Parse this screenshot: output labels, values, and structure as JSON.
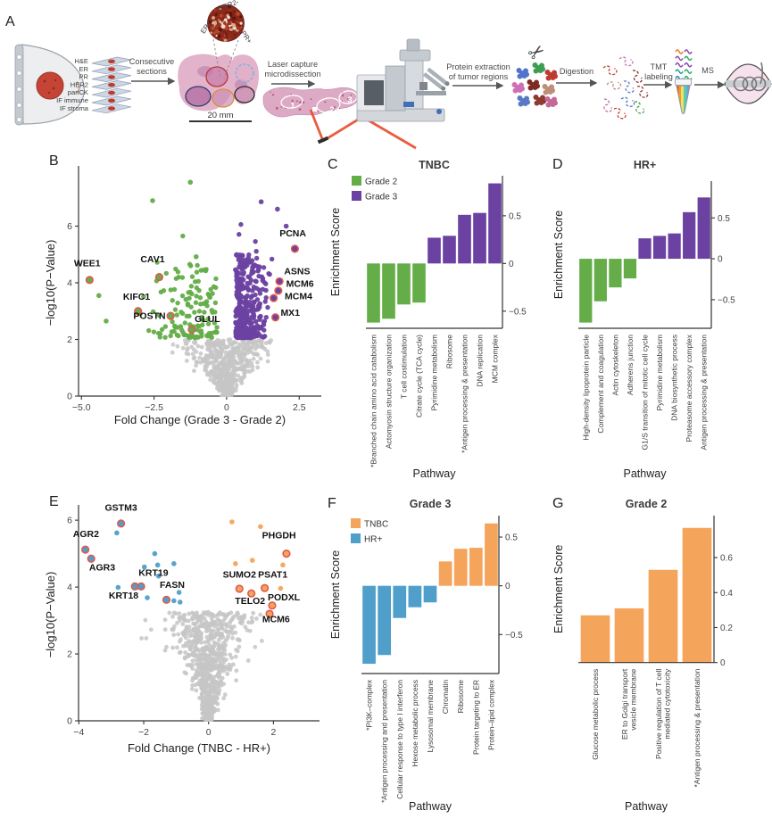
{
  "panel_letters": {
    "a": "A",
    "b": "B",
    "c": "C",
    "d": "D",
    "e": "E",
    "f": "F",
    "g": "G"
  },
  "colors": {
    "grade2_green": "#64ad48",
    "grade3_purple": "#6b41a1",
    "tnbc_orange": "#f5a45c",
    "hrplus_blue": "#4f9fca",
    "nonsignificant_grey": "#c6c6c6",
    "highlight_ring": "#dd5b50",
    "laser_red": "#e84b2c",
    "tumor_red": "#c44536"
  },
  "panel_a": {
    "slides": [
      "H&E",
      "ER",
      "PR",
      "HER2",
      "panCK",
      "IF immune",
      "IF stroma"
    ],
    "steps": {
      "consecutive_sections": [
        "Consecutive",
        "sections"
      ],
      "laser_capture": [
        "Laser capture",
        "microdissection"
      ],
      "protein_extraction": [
        "Protein extraction",
        "of tumor regions"
      ],
      "digestion": "Digestion",
      "tmt_labeling": [
        "TMT",
        "labeling"
      ],
      "ms": "MS"
    },
    "inset": {
      "her2": "HER2-",
      "er": "ER+",
      "pr": "PR+"
    },
    "scale_bar": "20 mm",
    "regions": [
      "1",
      "2",
      "3"
    ]
  },
  "chart_data": [
    {
      "panel": "B",
      "type": "scatter",
      "subtype": "volcano",
      "xlabel": "Fold Change (Grade 3 - Grade 2)",
      "ylabel": "−log10(P−Value)",
      "xlim": [
        -5.1,
        3.26
      ],
      "ylim": [
        0,
        8.0
      ],
      "xticks": [
        -5.0,
        -2.5,
        0,
        2.5
      ],
      "xtick_labels": [
        "−5.0",
        "−2.5",
        "0",
        "2.5"
      ],
      "yticks": [
        0,
        2,
        4,
        6
      ],
      "ytick_labels": [
        "0",
        "2",
        "4",
        "6"
      ],
      "significance_threshold_y": 2,
      "colors": {
        "up": "#6b41a1",
        "down": "#64ad48",
        "ns": "#c6c6c6",
        "ring": "#dd5b50"
      },
      "highlighted_genes": [
        {
          "name": "WEE1",
          "x": -4.72,
          "y": 4.1,
          "group": "down",
          "label_x": -4.8,
          "label_y": 4.58,
          "anchor": "middle"
        },
        {
          "name": "CAV1",
          "x": -2.32,
          "y": 4.2,
          "group": "down",
          "label_x": -2.55,
          "label_y": 4.72,
          "anchor": "middle"
        },
        {
          "name": "KIFC1",
          "x": -3.05,
          "y": 3.0,
          "group": "down",
          "label_x": -3.1,
          "label_y": 3.4,
          "anchor": "middle"
        },
        {
          "name": "POSTN",
          "x": -1.93,
          "y": 2.83,
          "group": "down",
          "label_x": -2.1,
          "label_y": 2.72,
          "anchor": "end"
        },
        {
          "name": "GLUL",
          "x": -1.2,
          "y": 2.35,
          "group": "down",
          "label_x": -1.1,
          "label_y": 2.62,
          "anchor": "start"
        },
        {
          "name": "PCNA",
          "x": 2.35,
          "y": 5.2,
          "group": "up",
          "label_x": 2.28,
          "label_y": 5.64,
          "anchor": "middle"
        },
        {
          "name": "ASNS",
          "x": 1.82,
          "y": 4.05,
          "group": "up",
          "label_x": 1.98,
          "label_y": 4.3,
          "anchor": "start"
        },
        {
          "name": "MCM6",
          "x": 1.78,
          "y": 3.72,
          "group": "up",
          "label_x": 2.05,
          "label_y": 3.86,
          "anchor": "start"
        },
        {
          "name": "MCM4",
          "x": 1.62,
          "y": 3.46,
          "group": "up",
          "label_x": 2.0,
          "label_y": 3.42,
          "anchor": "start"
        },
        {
          "name": "MX1",
          "x": 1.68,
          "y": 2.78,
          "group": "up",
          "label_x": 1.86,
          "label_y": 2.84,
          "anchor": "start"
        }
      ],
      "extra_points": [
        {
          "x": -1.25,
          "y": 7.55,
          "group": "down"
        },
        {
          "x": -2.55,
          "y": 6.9,
          "group": "down"
        },
        {
          "x": -1.05,
          "y": 4.92,
          "group": "down"
        },
        {
          "x": -4.4,
          "y": 3.55,
          "group": "down"
        },
        {
          "x": -4.15,
          "y": 2.65,
          "group": "down"
        },
        {
          "x": 1.19,
          "y": 6.86,
          "group": "up"
        },
        {
          "x": 1.75,
          "y": 6.6,
          "group": "up"
        },
        {
          "x": 2.05,
          "y": 6.0,
          "group": "up"
        }
      ],
      "cloud": {
        "seed": 11,
        "ns_n": 520,
        "down_n": 135,
        "up_n": 340
      }
    },
    {
      "panel": "C",
      "type": "bar",
      "title": "TNBC",
      "ylabel": "Enrichment Score",
      "xlabel": "Pathway",
      "legend": [
        {
          "label": "Grade 2",
          "color": "#64ad48"
        },
        {
          "label": "Grade 3",
          "color": "#6b41a1"
        }
      ],
      "ylim": [
        -0.68,
        0.92
      ],
      "yticks": [
        -0.5,
        0,
        0.5
      ],
      "ytick_labels": [
        "−0.5",
        "0",
        "0.5"
      ],
      "categories": [
        "*Branched chain amino acid catabolism",
        "Actomyosin structure organization",
        "T cell costimulation",
        "Citrate cycle (TCA cycle)",
        "Pyrimidine metabolism",
        "Ribosome",
        "*Antigen processing & presentation",
        "DNA replication",
        "MCM complex"
      ],
      "values": [
        -0.62,
        -0.58,
        -0.43,
        -0.41,
        0.27,
        0.29,
        0.51,
        0.53,
        0.84
      ],
      "negative_color": "#64ad48",
      "positive_color": "#6b41a1"
    },
    {
      "panel": "D",
      "type": "bar",
      "title": "HR+",
      "ylabel": "Enrichment Score",
      "xlabel": "Pathway",
      "legend": [],
      "ylim": [
        -0.85,
        0.95
      ],
      "yticks": [
        -0.5,
        0,
        0.5
      ],
      "ytick_labels": [
        "−0.5",
        "0",
        "0.5"
      ],
      "categories": [
        "High-density lipoprotein particle",
        "Complement and coagulation",
        "Actin cytoskeleton",
        "Adherens junction",
        "G1/S transition of mitotic cell cycle",
        "Pyrimidine metabolism",
        "DNA biosynthetic process",
        "Proteasome accessory complex",
        "Antigen processing & presentation"
      ],
      "values": [
        -0.78,
        -0.52,
        -0.35,
        -0.24,
        0.25,
        0.28,
        0.31,
        0.57,
        0.75
      ],
      "negative_color": "#64ad48",
      "positive_color": "#6b41a1"
    },
    {
      "panel": "E",
      "type": "scatter",
      "subtype": "volcano",
      "xlabel": "Fold Change (TNBC - HR+)",
      "ylabel": "−log10(P−Value)",
      "xlim": [
        -4.01,
        3.42
      ],
      "ylim": [
        0,
        6.35
      ],
      "xticks": [
        -4,
        -2,
        0,
        2
      ],
      "xtick_labels": [
        "−4",
        "−2",
        "0",
        "2"
      ],
      "yticks": [
        0,
        2,
        4,
        6
      ],
      "ytick_labels": [
        "0",
        "2",
        "4",
        "6"
      ],
      "significance_threshold_y": 3.4,
      "colors": {
        "up": "#f5a45c",
        "down": "#4f9fca",
        "ns": "#c6c6c6",
        "ring": "#dd5b50"
      },
      "highlighted_genes": [
        {
          "name": "GSTM3",
          "x": -2.7,
          "y": 5.9,
          "group": "down",
          "label_x": -2.7,
          "label_y": 6.28,
          "anchor": "middle"
        },
        {
          "name": "AGR2",
          "x": -3.8,
          "y": 5.12,
          "group": "down",
          "label_x": -3.78,
          "label_y": 5.5,
          "anchor": "middle"
        },
        {
          "name": "AGR3",
          "x": -3.62,
          "y": 4.85,
          "group": "down",
          "label_x": -3.28,
          "label_y": 4.5,
          "anchor": "middle"
        },
        {
          "name": "KRT19",
          "x": -2.08,
          "y": 4.02,
          "group": "down",
          "label_x": -1.7,
          "label_y": 4.34,
          "anchor": "middle"
        },
        {
          "name": "KRT18",
          "x": -2.27,
          "y": 4.02,
          "group": "down",
          "label_x": -2.62,
          "label_y": 3.66,
          "anchor": "middle"
        },
        {
          "name": "FASN",
          "x": -1.3,
          "y": 3.62,
          "group": "down",
          "label_x": -1.12,
          "label_y": 3.98,
          "anchor": "middle"
        },
        {
          "name": "PHGDH",
          "x": 2.4,
          "y": 5.0,
          "group": "up",
          "label_x": 2.17,
          "label_y": 5.45,
          "anchor": "middle"
        },
        {
          "name": "SUMO2",
          "x": 0.95,
          "y": 3.95,
          "group": "up",
          "label_x": 0.95,
          "label_y": 4.28,
          "anchor": "middle"
        },
        {
          "name": "PSAT1",
          "x": 1.73,
          "y": 3.97,
          "group": "up",
          "label_x": 1.98,
          "label_y": 4.28,
          "anchor": "middle"
        },
        {
          "name": "TELO2",
          "x": 1.32,
          "y": 3.81,
          "group": "up",
          "label_x": 1.28,
          "label_y": 3.5,
          "anchor": "middle"
        },
        {
          "name": "PODXL",
          "x": 1.96,
          "y": 3.45,
          "group": "up",
          "label_x": 2.32,
          "label_y": 3.6,
          "anchor": "middle"
        },
        {
          "name": "MCM6",
          "x": 1.88,
          "y": 3.2,
          "group": "up",
          "label_x": 2.08,
          "label_y": 2.95,
          "anchor": "middle"
        }
      ],
      "extra_points": [
        {
          "x": -2.83,
          "y": 5.62,
          "group": "down"
        },
        {
          "x": -1.66,
          "y": 5.0,
          "group": "down"
        },
        {
          "x": -1.98,
          "y": 4.6,
          "group": "down"
        },
        {
          "x": -1.57,
          "y": 4.66,
          "group": "down"
        },
        {
          "x": -1.07,
          "y": 4.7,
          "group": "down"
        },
        {
          "x": -1.54,
          "y": 4.33,
          "group": "down"
        },
        {
          "x": -2.79,
          "y": 3.99,
          "group": "down"
        },
        {
          "x": -0.91,
          "y": 3.84,
          "group": "down"
        },
        {
          "x": -1.07,
          "y": 3.59,
          "group": "down"
        },
        {
          "x": -0.88,
          "y": 3.55,
          "group": "down"
        },
        {
          "x": -1.89,
          "y": 3.68,
          "group": "down"
        },
        {
          "x": 0.72,
          "y": 5.95,
          "group": "up"
        },
        {
          "x": 1.6,
          "y": 5.81,
          "group": "up"
        },
        {
          "x": 0.83,
          "y": 4.7,
          "group": "up"
        },
        {
          "x": 1.35,
          "y": 4.8,
          "group": "up"
        },
        {
          "x": 2.22,
          "y": 3.96,
          "group": "up"
        },
        {
          "x": 2.29,
          "y": 4.66,
          "group": "up"
        }
      ],
      "cloud": {
        "seed": 23,
        "ns_n": 760,
        "down_n": 0,
        "up_n": 0
      }
    },
    {
      "panel": "F",
      "type": "bar",
      "title": "Grade 3",
      "ylabel": "Enrichment Score",
      "xlabel": "Pathway",
      "legend": [
        {
          "label": "TNBC",
          "color": "#f5a45c"
        },
        {
          "label": "HR+",
          "color": "#4f9fca"
        }
      ],
      "ylim": [
        -0.9,
        0.72
      ],
      "yticks": [
        -0.5,
        0,
        0.5
      ],
      "ytick_labels": [
        "−0.5",
        "0",
        "0.5"
      ],
      "categories": [
        "*PI3K–complex",
        "*Antigen processing and presentation",
        "Cellular response to type I interferon",
        "Hexose metabolic process",
        "Lysosomal membrane",
        "Chromatin",
        "Ribosome",
        "Protein targeting to ER",
        "Protein–lipid complex"
      ],
      "values": [
        -0.8,
        -0.71,
        -0.33,
        -0.22,
        -0.17,
        0.25,
        0.38,
        0.39,
        0.64
      ],
      "negative_color": "#4f9fca",
      "positive_color": "#f5a45c"
    },
    {
      "panel": "G",
      "type": "bar",
      "title": "Grade 2",
      "ylabel": "Enrichment Score",
      "xlabel": "Pathway",
      "legend": [],
      "ylim": [
        0,
        0.84
      ],
      "yticks": [
        0,
        0.2,
        0.4,
        0.6
      ],
      "ytick_labels": [
        "0",
        "0.2",
        "0.4",
        "0.6"
      ],
      "categories": [
        "Glucose metabolic process",
        [
          "ER to Golgi transport",
          "vesicle membrane"
        ],
        [
          "Positive regulation of T cell",
          "mediated cytotoxicity"
        ],
        "*Antigen processing & presentation"
      ],
      "values": [
        0.27,
        0.31,
        0.53,
        0.77
      ],
      "negative_color": "#f5a45c",
      "positive_color": "#f5a45c"
    }
  ]
}
